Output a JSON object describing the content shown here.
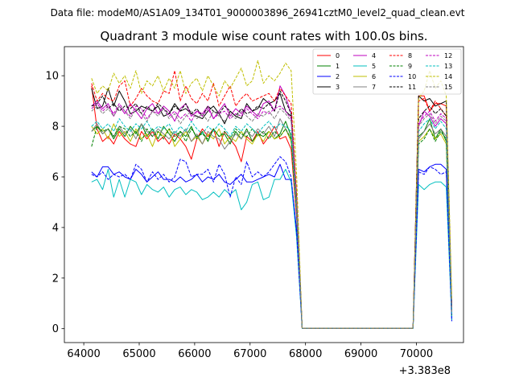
{
  "figure": {
    "suptitle": "Data file: modeM0/AS1A09_134T01_9000003896_26941cztM0_level2_quad_clean.evt"
  },
  "chart_data": {
    "type": "line",
    "title": "Quadrant 3 module wise count rates with 100.0s bins.",
    "xlabel": "",
    "ylabel": "",
    "x_offset_label": "+3.383e8",
    "xlim": [
      63650,
      70850
    ],
    "ylim": [
      -0.55,
      11.15
    ],
    "xticks": [
      64000,
      65000,
      66000,
      67000,
      68000,
      69000,
      70000
    ],
    "yticks": [
      0,
      2,
      4,
      6,
      8,
      10
    ],
    "legend_position": "top-right",
    "grid": false,
    "x": [
      64140,
      64240,
      64340,
      64440,
      64540,
      64640,
      64740,
      64840,
      64940,
      65040,
      65140,
      65240,
      65340,
      65440,
      65540,
      65640,
      65740,
      65840,
      65940,
      66040,
      66140,
      66240,
      66340,
      66440,
      66540,
      66640,
      66740,
      66840,
      66940,
      67040,
      67140,
      67240,
      67340,
      67440,
      67540,
      67640,
      67740,
      67840,
      67940,
      68040,
      68140,
      68240,
      68340,
      68440,
      68540,
      68640,
      68740,
      68840,
      68940,
      69040,
      69140,
      69240,
      69340,
      69440,
      69540,
      69640,
      69740,
      69840,
      69940,
      70040,
      70140,
      70240,
      70340,
      70440,
      70540,
      70640
    ],
    "series": [
      {
        "name": "0",
        "color": "#ff0000",
        "dash": "solid",
        "values": [
          9.6,
          7.9,
          7.4,
          7.6,
          7.3,
          7.8,
          7.5,
          7.3,
          7.2,
          7.8,
          7.5,
          7.8,
          7.4,
          7.6,
          7.3,
          7.7,
          7.5,
          7.2,
          6.7,
          7.5,
          7.9,
          7.6,
          7.9,
          7.2,
          7.8,
          7.5,
          7.2,
          6.6,
          7.6,
          7.4,
          7.8,
          7.3,
          7.6,
          8.0,
          7.5,
          7.6,
          7.1,
          4.4,
          0.02,
          0.02,
          0.02,
          0.02,
          0.02,
          0.02,
          0.02,
          0.02,
          0.02,
          0.02,
          0.02,
          0.02,
          0.02,
          0.02,
          0.02,
          0.02,
          0.02,
          0.02,
          0.02,
          0.02,
          0.02,
          9.2,
          9.2,
          8.6,
          8.9,
          8.9,
          8.8,
          0.6
        ]
      },
      {
        "name": "1",
        "color": "#008000",
        "dash": "solid",
        "values": [
          7.8,
          8.0,
          7.7,
          7.9,
          7.5,
          7.9,
          7.6,
          8.0,
          7.7,
          8.1,
          7.6,
          7.9,
          7.5,
          8.0,
          7.7,
          7.4,
          7.8,
          7.6,
          8.0,
          7.5,
          7.8,
          7.4,
          7.9,
          7.6,
          7.7,
          7.3,
          7.8,
          7.5,
          7.9,
          7.4,
          7.7,
          7.6,
          7.8,
          7.5,
          7.7,
          8.2,
          7.6,
          4.8,
          0.02,
          0.02,
          0.02,
          0.02,
          0.02,
          0.02,
          0.02,
          0.02,
          0.02,
          0.02,
          0.02,
          0.02,
          0.02,
          0.02,
          0.02,
          0.02,
          0.02,
          0.02,
          0.02,
          0.02,
          0.02,
          7.6,
          7.8,
          8.3,
          7.5,
          7.9,
          7.4,
          0.5
        ]
      },
      {
        "name": "2",
        "color": "#0000ff",
        "dash": "solid",
        "values": [
          6.2,
          6.0,
          6.4,
          6.4,
          6.1,
          6.2,
          6.0,
          5.9,
          6.3,
          6.1,
          5.8,
          6.0,
          6.2,
          5.9,
          5.9,
          5.8,
          6.0,
          5.8,
          5.9,
          6.1,
          5.8,
          6.0,
          5.9,
          6.1,
          5.8,
          5.7,
          5.9,
          6.1,
          5.8,
          5.8,
          5.9,
          6.0,
          6.1,
          6.0,
          6.5,
          5.9,
          5.9,
          3.9,
          0.02,
          0.02,
          0.02,
          0.02,
          0.02,
          0.02,
          0.02,
          0.02,
          0.02,
          0.02,
          0.02,
          0.02,
          0.02,
          0.02,
          0.02,
          0.02,
          0.02,
          0.02,
          0.02,
          0.02,
          0.02,
          6.3,
          6.2,
          6.4,
          6.5,
          6.5,
          6.3,
          0.3
        ]
      },
      {
        "name": "3",
        "color": "#000000",
        "dash": "solid",
        "values": [
          9.5,
          8.7,
          8.8,
          9.5,
          8.8,
          9.4,
          9.0,
          8.5,
          8.6,
          8.8,
          8.7,
          8.6,
          8.8,
          8.4,
          8.5,
          8.9,
          8.6,
          8.7,
          8.5,
          8.4,
          8.3,
          8.6,
          8.8,
          8.5,
          8.1,
          8.6,
          8.4,
          8.3,
          8.9,
          8.6,
          8.7,
          9.1,
          8.9,
          9.0,
          9.3,
          8.6,
          8.4,
          5.0,
          0.02,
          0.02,
          0.02,
          0.02,
          0.02,
          0.02,
          0.02,
          0.02,
          0.02,
          0.02,
          0.02,
          0.02,
          0.02,
          0.02,
          0.02,
          0.02,
          0.02,
          0.02,
          0.02,
          0.02,
          0.02,
          9.2,
          9.0,
          9.1,
          8.8,
          8.9,
          9.0,
          0.8
        ]
      },
      {
        "name": "4",
        "color": "#bf00bf",
        "dash": "solid",
        "values": [
          8.8,
          9.0,
          8.7,
          8.9,
          8.4,
          8.8,
          8.5,
          8.9,
          8.6,
          8.3,
          8.7,
          8.9,
          8.5,
          8.8,
          8.6,
          8.2,
          8.7,
          8.9,
          8.4,
          8.6,
          8.5,
          8.8,
          8.3,
          8.6,
          8.9,
          8.4,
          8.7,
          8.5,
          8.8,
          8.6,
          8.4,
          8.9,
          9.0,
          8.6,
          9.6,
          9.2,
          8.5,
          5.2,
          0.02,
          0.02,
          0.02,
          0.02,
          0.02,
          0.02,
          0.02,
          0.02,
          0.02,
          0.02,
          0.02,
          0.02,
          0.02,
          0.02,
          0.02,
          0.02,
          0.02,
          0.02,
          0.02,
          0.02,
          0.02,
          8.0,
          8.6,
          8.4,
          8.0,
          8.3,
          8.1,
          0.7
        ]
      },
      {
        "name": "5",
        "color": "#00bfbf",
        "dash": "solid",
        "values": [
          5.8,
          5.9,
          5.5,
          6.3,
          5.2,
          5.9,
          5.2,
          5.9,
          5.8,
          5.3,
          5.7,
          5.5,
          5.4,
          5.6,
          5.2,
          5.5,
          5.6,
          5.3,
          5.5,
          5.4,
          5.1,
          5.2,
          5.4,
          5.2,
          5.5,
          5.3,
          5.5,
          4.7,
          5.0,
          5.7,
          5.8,
          5.1,
          5.2,
          5.9,
          5.9,
          6.3,
          5.8,
          3.6,
          0.02,
          0.02,
          0.02,
          0.02,
          0.02,
          0.02,
          0.02,
          0.02,
          0.02,
          0.02,
          0.02,
          0.02,
          0.02,
          0.02,
          0.02,
          0.02,
          0.02,
          0.02,
          0.02,
          0.02,
          0.02,
          5.7,
          5.5,
          5.7,
          5.8,
          5.8,
          5.6,
          0.3
        ]
      },
      {
        "name": "6",
        "color": "#bfbf00",
        "dash": "solid",
        "values": [
          8.0,
          7.7,
          7.9,
          7.5,
          8.1,
          7.6,
          7.8,
          7.4,
          7.9,
          7.5,
          7.7,
          7.2,
          7.8,
          7.6,
          7.9,
          7.2,
          7.5,
          7.8,
          7.4,
          7.6,
          7.3,
          7.7,
          7.5,
          7.9,
          7.3,
          7.6,
          7.4,
          7.8,
          7.5,
          7.3,
          7.7,
          7.4,
          7.8,
          7.5,
          7.6,
          7.9,
          7.4,
          4.6,
          0.02,
          0.02,
          0.02,
          0.02,
          0.02,
          0.02,
          0.02,
          0.02,
          0.02,
          0.02,
          0.02,
          0.02,
          0.02,
          0.02,
          0.02,
          0.02,
          0.02,
          0.02,
          0.02,
          0.02,
          0.02,
          7.4,
          7.6,
          7.9,
          7.5,
          7.7,
          7.3,
          0.5
        ]
      },
      {
        "name": "7",
        "color": "#808080",
        "dash": "solid",
        "values": [
          7.8,
          8.1,
          7.7,
          7.9,
          7.6,
          8.0,
          7.7,
          7.9,
          7.5,
          8.1,
          7.8,
          7.6,
          7.9,
          7.7,
          7.5,
          7.8,
          7.6,
          7.9,
          7.4,
          7.7,
          7.3,
          7.8,
          7.6,
          7.5,
          7.1,
          7.4,
          7.7,
          7.5,
          7.8,
          7.6,
          7.9,
          7.7,
          8.0,
          7.6,
          8.3,
          7.9,
          7.5,
          4.7,
          0.02,
          0.02,
          0.02,
          0.02,
          0.02,
          0.02,
          0.02,
          0.02,
          0.02,
          0.02,
          0.02,
          0.02,
          0.02,
          0.02,
          0.02,
          0.02,
          0.02,
          0.02,
          0.02,
          0.02,
          0.02,
          7.5,
          7.8,
          8.1,
          7.7,
          7.9,
          7.6,
          0.5
        ]
      },
      {
        "name": "8",
        "color": "#ff0000",
        "dash": "dashed",
        "values": [
          9.7,
          9.0,
          9.3,
          9.1,
          9.0,
          9.6,
          9.8,
          8.8,
          9.1,
          9.5,
          9.2,
          9.0,
          8.9,
          9.4,
          9.3,
          10.2,
          9.0,
          9.6,
          9.1,
          8.9,
          9.3,
          9.0,
          9.7,
          8.8,
          9.2,
          9.6,
          8.8,
          9.1,
          9.3,
          9.0,
          9.1,
          9.2,
          9.3,
          9.0,
          9.5,
          9.2,
          8.9,
          5.3,
          0.02,
          0.02,
          0.02,
          0.02,
          0.02,
          0.02,
          0.02,
          0.02,
          0.02,
          0.02,
          0.02,
          0.02,
          0.02,
          0.02,
          0.02,
          0.02,
          0.02,
          0.02,
          0.02,
          0.02,
          0.02,
          9.0,
          9.1,
          8.6,
          9.0,
          8.7,
          8.4,
          0.8
        ]
      },
      {
        "name": "9",
        "color": "#008000",
        "dash": "dashed",
        "values": [
          7.2,
          8.0,
          7.8,
          7.9,
          7.6,
          8.0,
          7.9,
          7.6,
          7.8,
          7.4,
          7.9,
          7.6,
          7.8,
          7.5,
          7.9,
          7.6,
          7.8,
          7.4,
          7.9,
          7.6,
          7.7,
          7.5,
          7.9,
          7.6,
          7.8,
          7.5,
          7.9,
          7.7,
          7.6,
          7.9,
          7.6,
          7.8,
          7.5,
          7.8,
          7.6,
          7.9,
          7.5,
          4.6,
          0.02,
          0.02,
          0.02,
          0.02,
          0.02,
          0.02,
          0.02,
          0.02,
          0.02,
          0.02,
          0.02,
          0.02,
          0.02,
          0.02,
          0.02,
          0.02,
          0.02,
          0.02,
          0.02,
          0.02,
          0.02,
          7.3,
          7.5,
          7.9,
          7.4,
          7.8,
          7.5,
          0.5
        ]
      },
      {
        "name": "10",
        "color": "#0000ff",
        "dash": "dashed",
        "values": [
          6.1,
          6.0,
          6.2,
          5.9,
          6.1,
          6.0,
          6.1,
          5.9,
          6.5,
          6.3,
          5.8,
          6.2,
          5.9,
          6.1,
          5.8,
          6.0,
          6.7,
          6.6,
          6.0,
          6.1,
          6.1,
          6.3,
          5.8,
          6.5,
          6.1,
          5.2,
          6.0,
          5.7,
          6.6,
          6.0,
          6.2,
          6.0,
          6.2,
          6.5,
          6.8,
          6.6,
          6.0,
          3.8,
          0.02,
          0.02,
          0.02,
          0.02,
          0.02,
          0.02,
          0.02,
          0.02,
          0.02,
          0.02,
          0.02,
          0.02,
          0.02,
          0.02,
          0.02,
          0.02,
          0.02,
          0.02,
          0.02,
          0.02,
          0.02,
          6.2,
          6.1,
          6.4,
          6.3,
          6.1,
          6.2,
          0.3
        ]
      },
      {
        "name": "11",
        "color": "#000000",
        "dash": "dashed",
        "values": [
          8.8,
          8.9,
          9.2,
          8.7,
          8.9,
          8.6,
          8.8,
          8.7,
          8.9,
          8.5,
          8.8,
          8.6,
          8.9,
          8.7,
          8.5,
          8.8,
          8.6,
          8.9,
          8.5,
          8.7,
          8.4,
          8.8,
          8.6,
          8.5,
          8.8,
          8.6,
          8.4,
          8.7,
          8.5,
          8.6,
          8.8,
          8.7,
          8.9,
          8.6,
          9.4,
          9.0,
          8.5,
          5.1,
          0.02,
          0.02,
          0.02,
          0.02,
          0.02,
          0.02,
          0.02,
          0.02,
          0.02,
          0.02,
          0.02,
          0.02,
          0.02,
          0.02,
          0.02,
          0.02,
          0.02,
          0.02,
          0.02,
          0.02,
          0.02,
          8.3,
          8.6,
          8.8,
          8.5,
          8.7,
          8.4,
          0.7
        ]
      },
      {
        "name": "12",
        "color": "#bf00bf",
        "dash": "dashed",
        "values": [
          8.7,
          8.9,
          8.6,
          8.8,
          8.5,
          8.9,
          8.6,
          8.4,
          8.8,
          8.7,
          8.3,
          8.6,
          8.5,
          8.7,
          8.4,
          8.6,
          8.3,
          8.5,
          8.2,
          8.6,
          8.4,
          8.7,
          8.3,
          8.5,
          8.6,
          8.3,
          8.5,
          8.4,
          8.7,
          8.5,
          8.3,
          8.6,
          8.5,
          8.7,
          8.8,
          8.6,
          8.3,
          5.0,
          0.02,
          0.02,
          0.02,
          0.02,
          0.02,
          0.02,
          0.02,
          0.02,
          0.02,
          0.02,
          0.02,
          0.02,
          0.02,
          0.02,
          0.02,
          0.02,
          0.02,
          0.02,
          0.02,
          0.02,
          0.02,
          8.1,
          8.4,
          8.6,
          8.2,
          8.5,
          8.3,
          0.6
        ]
      },
      {
        "name": "13",
        "color": "#00bfbf",
        "dash": "dashed",
        "values": [
          8.0,
          8.2,
          7.9,
          8.1,
          7.8,
          8.3,
          8.0,
          7.8,
          8.1,
          7.9,
          8.2,
          7.8,
          8.0,
          7.9,
          8.1,
          7.7,
          8.0,
          7.8,
          8.2,
          7.9,
          7.7,
          8.0,
          7.8,
          8.1,
          7.9,
          7.6,
          8.0,
          7.8,
          8.1,
          7.9,
          7.7,
          8.0,
          8.2,
          7.9,
          8.1,
          8.0,
          7.8,
          4.8,
          0.02,
          0.02,
          0.02,
          0.02,
          0.02,
          0.02,
          0.02,
          0.02,
          0.02,
          0.02,
          0.02,
          0.02,
          0.02,
          0.02,
          0.02,
          0.02,
          0.02,
          0.02,
          0.02,
          0.02,
          0.02,
          7.8,
          8.1,
          8.3,
          7.9,
          8.2,
          7.9,
          0.5
        ]
      },
      {
        "name": "14",
        "color": "#bfbf00",
        "dash": "dashed",
        "values": [
          9.9,
          9.3,
          9.6,
          9.4,
          10.1,
          9.7,
          10.0,
          9.5,
          10.2,
          9.3,
          9.8,
          9.6,
          10.0,
          9.4,
          9.9,
          9.5,
          10.2,
          9.3,
          9.7,
          9.9,
          9.4,
          10.0,
          9.6,
          9.2,
          9.8,
          9.5,
          9.9,
          10.3,
          9.6,
          9.8,
          10.6,
          9.7,
          10.0,
          9.8,
          10.1,
          10.5,
          10.2,
          6.1,
          0.02,
          0.02,
          0.02,
          0.02,
          0.02,
          0.02,
          0.02,
          0.02,
          0.02,
          0.02,
          0.02,
          0.02,
          0.02,
          0.02,
          0.02,
          0.02,
          0.02,
          0.02,
          0.02,
          0.02,
          0.02,
          9.1,
          9.4,
          10.2,
          9.5,
          9.8,
          9.2,
          1.2
        ]
      },
      {
        "name": "15",
        "color": "#808080",
        "dash": "dashed",
        "values": [
          8.6,
          8.8,
          8.5,
          8.7,
          8.4,
          8.8,
          8.6,
          8.3,
          8.7,
          8.5,
          8.2,
          8.6,
          8.4,
          8.7,
          8.3,
          8.5,
          8.1,
          8.4,
          8.6,
          8.3,
          8.5,
          8.2,
          8.6,
          8.4,
          8.2,
          8.5,
          8.3,
          8.6,
          8.4,
          8.2,
          8.5,
          8.4,
          8.6,
          8.3,
          8.7,
          8.5,
          8.2,
          5.0,
          0.02,
          0.02,
          0.02,
          0.02,
          0.02,
          0.02,
          0.02,
          0.02,
          0.02,
          0.02,
          0.02,
          0.02,
          0.02,
          0.02,
          0.02,
          0.02,
          0.02,
          0.02,
          0.02,
          0.02,
          0.02,
          8.0,
          8.3,
          8.5,
          8.1,
          8.4,
          8.2,
          0.6
        ]
      }
    ]
  }
}
